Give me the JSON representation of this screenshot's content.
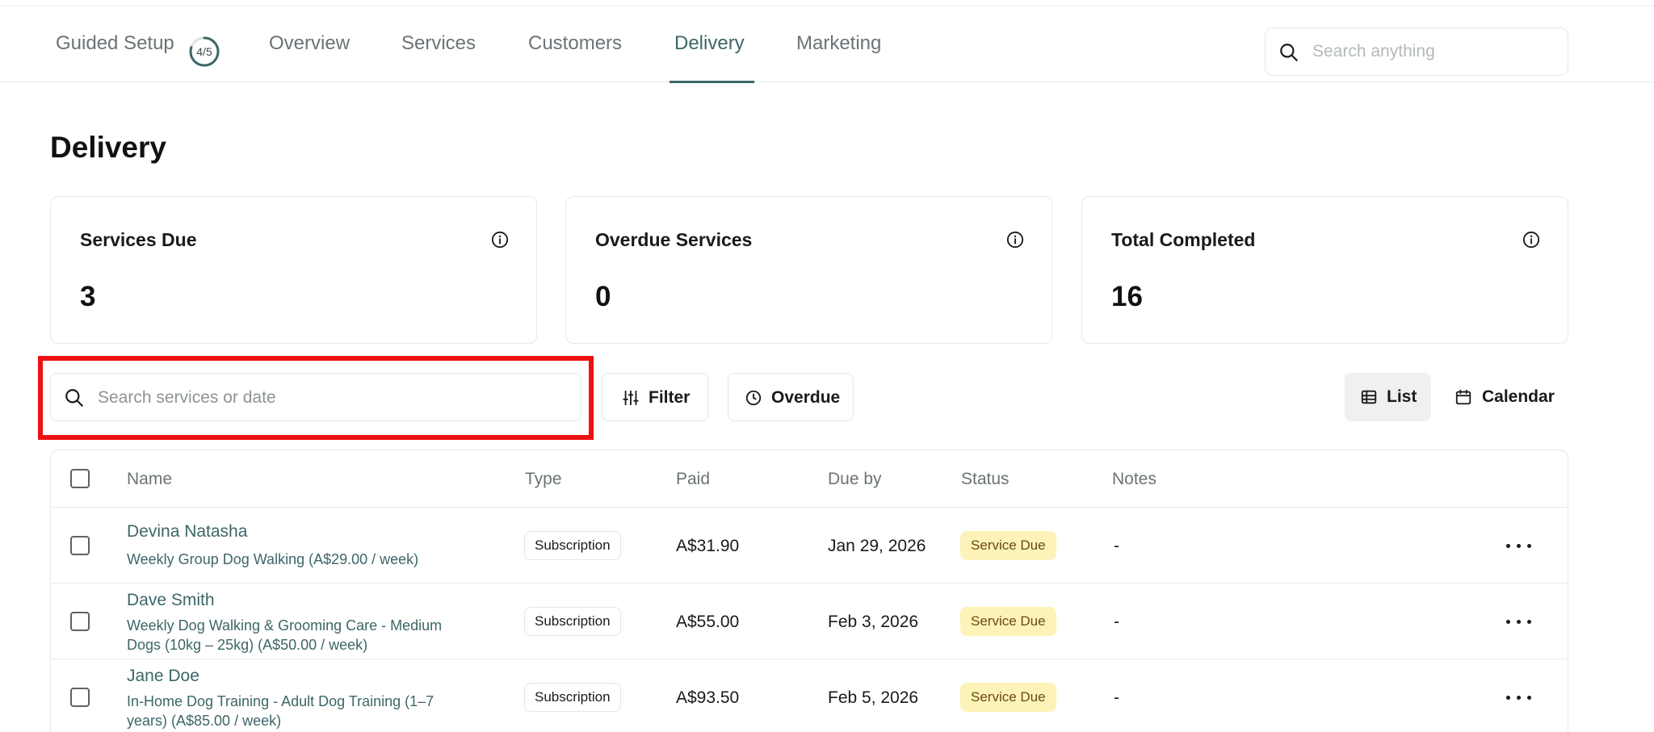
{
  "nav": {
    "items": [
      {
        "label": "Guided Setup"
      },
      {
        "label": "Overview"
      },
      {
        "label": "Services"
      },
      {
        "label": "Customers"
      },
      {
        "label": "Delivery"
      },
      {
        "label": "Marketing"
      }
    ],
    "active": "Delivery",
    "setup_progress": "4/5",
    "setup_progress_fraction": 0.8,
    "search_placeholder": "Search anything"
  },
  "page": {
    "title": "Delivery"
  },
  "stats": [
    {
      "label": "Services Due",
      "value": "3"
    },
    {
      "label": "Overdue Services",
      "value": "0"
    },
    {
      "label": "Total Completed",
      "value": "16"
    }
  ],
  "toolbar": {
    "search_placeholder": "Search services or date",
    "filter_label": "Filter",
    "overdue_label": "Overdue",
    "view_list_label": "List",
    "view_calendar_label": "Calendar",
    "active_view": "List"
  },
  "table": {
    "headers": [
      "Name",
      "Type",
      "Paid",
      "Due by",
      "Status",
      "Notes"
    ],
    "rows": [
      {
        "name": "Devina Natasha",
        "service": "Weekly Group Dog Walking (A$29.00 / week)",
        "type": "Subscription",
        "paid": "A$31.90",
        "due": "Jan 29, 2026",
        "status": "Service Due",
        "notes": "-"
      },
      {
        "name": "Dave Smith",
        "service": "Weekly Dog Walking & Grooming Care - Medium Dogs (10kg – 25kg) (A$50.00 / week)",
        "type": "Subscription",
        "paid": "A$55.00",
        "due": "Feb 3, 2026",
        "status": "Service Due",
        "notes": "-"
      },
      {
        "name": "Jane Doe",
        "service": "In-Home Dog Training - Adult Dog Training (1–7 years) (A$85.00 / week)",
        "type": "Subscription",
        "paid": "A$93.50",
        "due": "Feb 5, 2026",
        "status": "Service Due",
        "notes": "-"
      }
    ]
  },
  "colors": {
    "accent": "#3d6667",
    "status_due_bg": "#fdf3b8",
    "highlight": "#ee1111"
  },
  "icons": [
    "search-icon",
    "info-icon",
    "filter-icon",
    "clock-icon",
    "list-icon",
    "calendar-icon",
    "more-icon"
  ]
}
